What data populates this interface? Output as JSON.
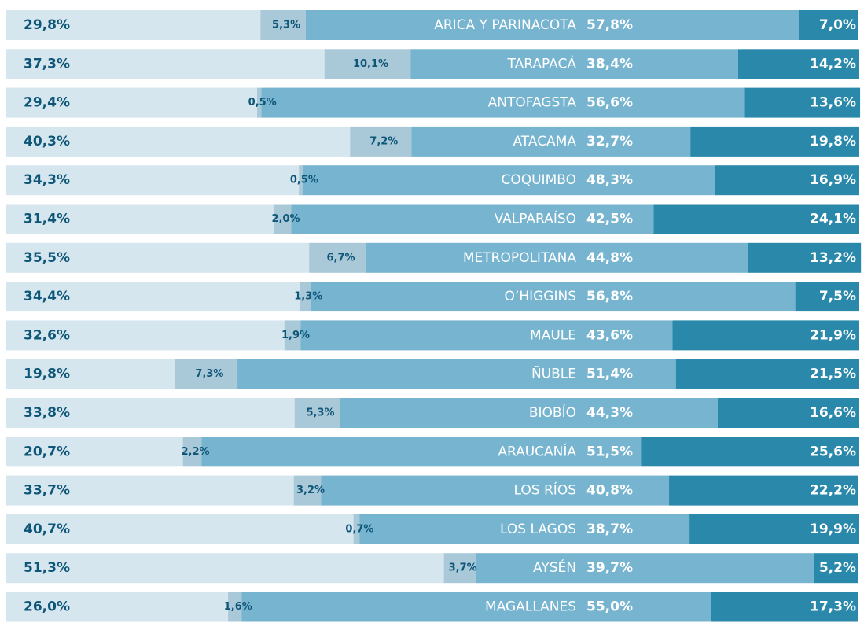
{
  "chart_data": {
    "type": "stacked-bar-horizontal",
    "categories": [
      "ARICA Y PARINACOTA",
      "TARAPACÁ",
      "ANTOFAGSTA",
      "ATACAMA",
      "COQUIMBO",
      "VALPARAÍSO",
      "METROPOLITANA",
      "O’HIGGINS",
      "MAULE",
      "ÑUBLE",
      "BIOBÍO",
      "ARAUCANÍA",
      "LOS RÍOS",
      "LOS LAGOS",
      "AYSÉN",
      "MAGALLANES"
    ],
    "xlim": [
      0,
      100
    ],
    "series": [
      {
        "color": "#d6e6ef",
        "values": [
          29.8,
          37.3,
          29.4,
          40.3,
          34.3,
          31.4,
          35.5,
          34.4,
          32.6,
          19.8,
          33.8,
          20.7,
          33.7,
          40.7,
          51.3,
          26.0
        ],
        "value_labels": [
          "29,8%",
          "37,3%",
          "29,4%",
          "40,3%",
          "34,3%",
          "31,4%",
          "35,5%",
          "34,4%",
          "32,6%",
          "19,8%",
          "33,8%",
          "20,7%",
          "33,7%",
          "40,7%",
          "51,3%",
          "26,0%"
        ]
      },
      {
        "color": "#a9c8d8",
        "values": [
          5.3,
          10.1,
          0.5,
          7.2,
          0.5,
          2.0,
          6.7,
          1.3,
          1.9,
          7.3,
          5.3,
          2.2,
          3.2,
          0.7,
          3.7,
          1.6
        ],
        "value_labels": [
          "5,3%",
          "10,1%",
          "0,5%",
          "7,2%",
          "0,5%",
          "2,0%",
          "6,7%",
          "1,3%",
          "1,9%",
          "7,3%",
          "5,3%",
          "2,2%",
          "3,2%",
          "0,7%",
          "3,7%",
          "1,6%"
        ]
      },
      {
        "color": "#76b4d0",
        "values": [
          57.8,
          38.4,
          56.6,
          32.7,
          48.3,
          42.5,
          44.8,
          56.8,
          43.6,
          51.4,
          44.3,
          51.5,
          40.8,
          38.7,
          39.7,
          55.0
        ],
        "value_labels": [
          "57,8%",
          "38,4%",
          "56,6%",
          "32,7%",
          "48,3%",
          "42,5%",
          "44,8%",
          "56,8%",
          "43,6%",
          "51,4%",
          "44,3%",
          "51,5%",
          "40,8%",
          "38,7%",
          "39,7%",
          "55,0%"
        ]
      },
      {
        "color": "#2a89aa",
        "values": [
          7.0,
          14.2,
          13.6,
          19.8,
          16.9,
          24.1,
          13.2,
          7.5,
          21.9,
          21.5,
          16.6,
          25.6,
          22.2,
          19.9,
          5.2,
          17.3
        ],
        "value_labels": [
          "7,0%",
          "14,2%",
          "13,6%",
          "19,8%",
          "16,9%",
          "24,1%",
          "13,2%",
          "7,5%",
          "21,9%",
          "21,5%",
          "16,6%",
          "25,6%",
          "22,2%",
          "19,9%",
          "5,2%",
          "17,3%"
        ]
      }
    ]
  }
}
